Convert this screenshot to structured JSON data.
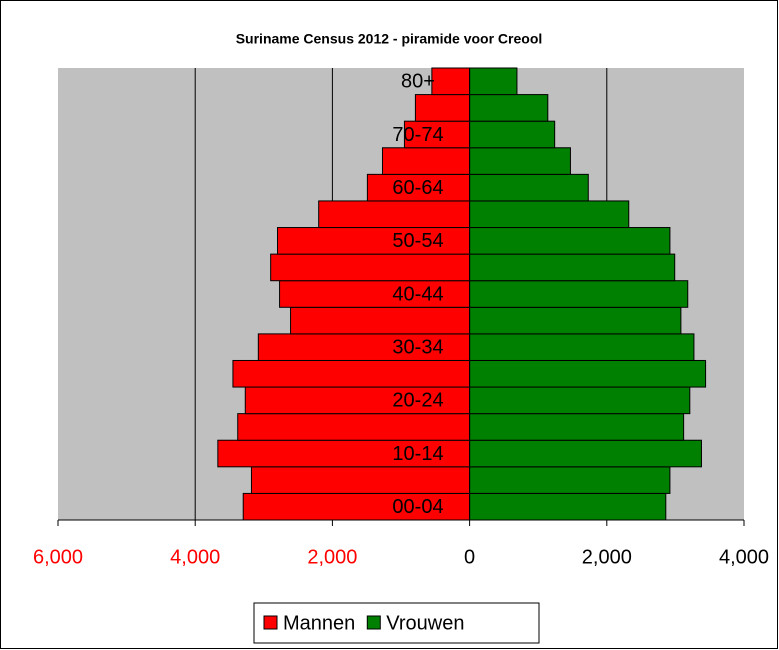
{
  "chart_data": {
    "type": "pyramid",
    "title": "Suriname Census 2012 - piramide voor  Creool",
    "categories": [
      "00-04",
      null,
      "10-14",
      null,
      "20-24",
      null,
      "30-34",
      null,
      "40-44",
      null,
      "50-54",
      null,
      "60-64",
      null,
      "70-74",
      null,
      "80+"
    ],
    "series": [
      {
        "name": "Mannen",
        "color": "#ff0000",
        "values": [
          -3300,
          -3180,
          -3670,
          -3380,
          -3270,
          -3450,
          -3080,
          -2610,
          -2770,
          -2900,
          -2800,
          -2200,
          -1490,
          -1270,
          -950,
          -790,
          -550
        ]
      },
      {
        "name": "Vrouwen",
        "color": "#008000",
        "values": [
          2860,
          2920,
          3380,
          3120,
          3210,
          3440,
          3270,
          3080,
          3180,
          2990,
          2920,
          2320,
          1730,
          1470,
          1240,
          1140,
          690
        ]
      }
    ],
    "xlim": [
      -6000,
      4000
    ],
    "xticks": [
      {
        "value": -6000,
        "label": "6,000"
      },
      {
        "value": -4000,
        "label": "4,000"
      },
      {
        "value": -2000,
        "label": "2,000"
      },
      0,
      {
        "value": 2000,
        "label": "2,000"
      },
      {
        "value": 4000,
        "label": "4,000"
      }
    ],
    "grid": true,
    "legend": "bottom"
  }
}
